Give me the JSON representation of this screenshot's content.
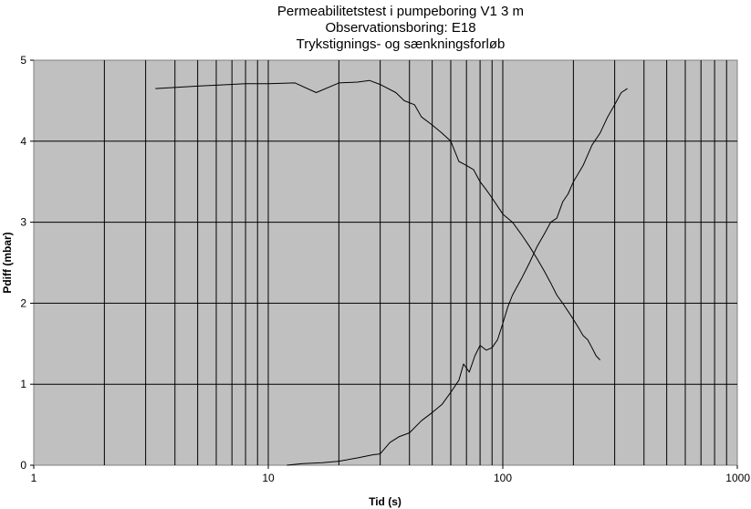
{
  "chart_data": {
    "type": "line",
    "title_lines": [
      "Permeabilitetstest i pumpeboring V1 3 m",
      "Observationsboring: E18",
      "Trykstignings- og sænkningsforløb"
    ],
    "xlabel": "Tid (s)",
    "ylabel": "Pdiff (mbar)",
    "x_scale": "log",
    "xlim": [
      1,
      1000
    ],
    "ylim": [
      0,
      5
    ],
    "x_ticks": [
      1,
      10,
      100,
      1000
    ],
    "x_tick_labels": [
      "1",
      "10",
      "100",
      "1000"
    ],
    "y_ticks": [
      0,
      1,
      2,
      3,
      4,
      5
    ],
    "y_tick_labels": [
      "0",
      "1",
      "2",
      "3",
      "4",
      "5"
    ],
    "grid": true,
    "legend": "none",
    "colors": {
      "plot_bg": "#c0c0c0",
      "grid": "#000000",
      "line": "#000000",
      "frame": "#808080"
    },
    "series": [
      {
        "x": [
          3.3,
          5,
          8,
          10,
          13,
          16,
          20,
          24,
          27,
          30,
          35,
          38,
          42,
          45,
          50,
          55,
          60,
          65,
          70,
          75,
          80,
          85,
          90,
          100,
          110,
          120,
          130,
          140,
          150,
          160,
          170,
          180,
          190,
          200,
          210,
          220,
          230,
          240,
          250,
          260
        ],
        "y": [
          4.65,
          4.68,
          4.71,
          4.71,
          4.72,
          4.6,
          4.72,
          4.73,
          4.75,
          4.7,
          4.6,
          4.5,
          4.45,
          4.3,
          4.2,
          4.1,
          4.0,
          3.75,
          3.7,
          3.65,
          3.5,
          3.4,
          3.3,
          3.1,
          3.0,
          2.85,
          2.7,
          2.55,
          2.4,
          2.25,
          2.1,
          2.0,
          1.9,
          1.8,
          1.7,
          1.6,
          1.55,
          1.45,
          1.35,
          1.3
        ]
      },
      {
        "x": [
          12,
          14,
          17,
          20,
          24,
          28,
          30,
          33,
          36,
          40,
          45,
          50,
          55,
          60,
          65,
          68,
          72,
          76,
          80,
          85,
          90,
          95,
          100,
          105,
          110,
          120,
          130,
          140,
          150,
          160,
          170,
          180,
          190,
          200,
          220,
          240,
          260,
          280,
          300,
          320,
          340
        ],
        "y": [
          0.0,
          0.02,
          0.03,
          0.05,
          0.09,
          0.13,
          0.14,
          0.28,
          0.35,
          0.4,
          0.55,
          0.65,
          0.75,
          0.9,
          1.05,
          1.25,
          1.15,
          1.35,
          1.48,
          1.42,
          1.45,
          1.55,
          1.75,
          1.95,
          2.1,
          2.3,
          2.5,
          2.7,
          2.85,
          3.0,
          3.05,
          3.25,
          3.35,
          3.5,
          3.7,
          3.95,
          4.1,
          4.3,
          4.45,
          4.6,
          4.65
        ]
      }
    ]
  }
}
